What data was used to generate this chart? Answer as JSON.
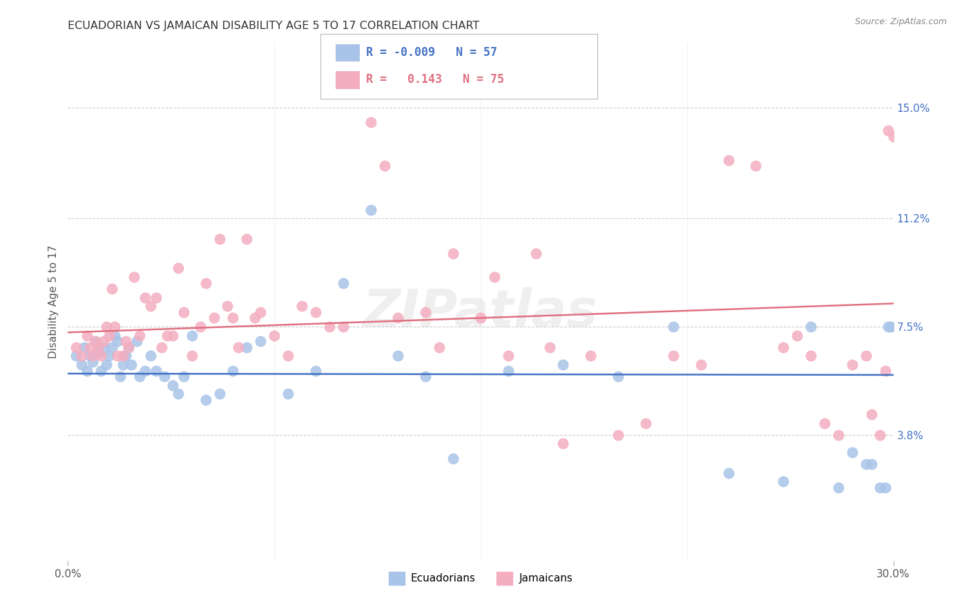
{
  "title": "ECUADORIAN VS JAMAICAN DISABILITY AGE 5 TO 17 CORRELATION CHART",
  "source": "Source: ZipAtlas.com",
  "ylabel": "Disability Age 5 to 17",
  "yticks": [
    0.038,
    0.075,
    0.112,
    0.15
  ],
  "ytick_labels": [
    "3.8%",
    "7.5%",
    "11.2%",
    "15.0%"
  ],
  "xmin": 0.0,
  "xmax": 0.3,
  "ymin": -0.005,
  "ymax": 0.172,
  "blue_color": "#a8c4e8",
  "pink_color": "#f4aec0",
  "blue_line_color": "#4472c4",
  "pink_line_color": "#e07080",
  "watermark": "ZIPatlas",
  "legend_text_blue": "R = -0.009   N = 57",
  "legend_text_pink": "R =   0.143   N = 75",
  "blue_scatter_x": [
    0.003,
    0.005,
    0.006,
    0.007,
    0.008,
    0.009,
    0.01,
    0.011,
    0.012,
    0.013,
    0.014,
    0.015,
    0.016,
    0.017,
    0.018,
    0.019,
    0.02,
    0.021,
    0.022,
    0.023,
    0.025,
    0.026,
    0.028,
    0.03,
    0.032,
    0.035,
    0.038,
    0.04,
    0.042,
    0.045,
    0.05,
    0.055,
    0.06,
    0.065,
    0.07,
    0.08,
    0.09,
    0.1,
    0.11,
    0.12,
    0.13,
    0.14,
    0.16,
    0.18,
    0.2,
    0.22,
    0.24,
    0.26,
    0.27,
    0.28,
    0.285,
    0.29,
    0.292,
    0.295,
    0.297,
    0.298,
    0.299
  ],
  "blue_scatter_y": [
    0.065,
    0.062,
    0.068,
    0.06,
    0.065,
    0.063,
    0.07,
    0.066,
    0.06,
    0.068,
    0.062,
    0.065,
    0.068,
    0.072,
    0.07,
    0.058,
    0.062,
    0.065,
    0.068,
    0.062,
    0.07,
    0.058,
    0.06,
    0.065,
    0.06,
    0.058,
    0.055,
    0.052,
    0.058,
    0.072,
    0.05,
    0.052,
    0.06,
    0.068,
    0.07,
    0.052,
    0.06,
    0.09,
    0.115,
    0.065,
    0.058,
    0.03,
    0.06,
    0.062,
    0.058,
    0.075,
    0.025,
    0.022,
    0.075,
    0.02,
    0.032,
    0.028,
    0.028,
    0.02,
    0.02,
    0.075,
    0.075
  ],
  "pink_scatter_x": [
    0.003,
    0.005,
    0.007,
    0.008,
    0.009,
    0.01,
    0.011,
    0.012,
    0.013,
    0.014,
    0.015,
    0.016,
    0.017,
    0.018,
    0.02,
    0.021,
    0.022,
    0.024,
    0.026,
    0.028,
    0.03,
    0.032,
    0.034,
    0.036,
    0.038,
    0.04,
    0.042,
    0.045,
    0.048,
    0.05,
    0.053,
    0.055,
    0.058,
    0.06,
    0.062,
    0.065,
    0.068,
    0.07,
    0.075,
    0.08,
    0.085,
    0.09,
    0.095,
    0.1,
    0.11,
    0.115,
    0.12,
    0.13,
    0.135,
    0.14,
    0.15,
    0.155,
    0.16,
    0.17,
    0.175,
    0.18,
    0.19,
    0.2,
    0.21,
    0.22,
    0.23,
    0.24,
    0.25,
    0.26,
    0.265,
    0.27,
    0.275,
    0.28,
    0.285,
    0.29,
    0.292,
    0.295,
    0.297,
    0.298,
    0.3
  ],
  "pink_scatter_y": [
    0.068,
    0.065,
    0.072,
    0.068,
    0.065,
    0.07,
    0.068,
    0.065,
    0.07,
    0.075,
    0.072,
    0.088,
    0.075,
    0.065,
    0.065,
    0.07,
    0.068,
    0.092,
    0.072,
    0.085,
    0.082,
    0.085,
    0.068,
    0.072,
    0.072,
    0.095,
    0.08,
    0.065,
    0.075,
    0.09,
    0.078,
    0.105,
    0.082,
    0.078,
    0.068,
    0.105,
    0.078,
    0.08,
    0.072,
    0.065,
    0.082,
    0.08,
    0.075,
    0.075,
    0.145,
    0.13,
    0.078,
    0.08,
    0.068,
    0.1,
    0.078,
    0.092,
    0.065,
    0.1,
    0.068,
    0.035,
    0.065,
    0.038,
    0.042,
    0.065,
    0.062,
    0.132,
    0.13,
    0.068,
    0.072,
    0.065,
    0.042,
    0.038,
    0.062,
    0.065,
    0.045,
    0.038,
    0.06,
    0.142,
    0.14
  ]
}
